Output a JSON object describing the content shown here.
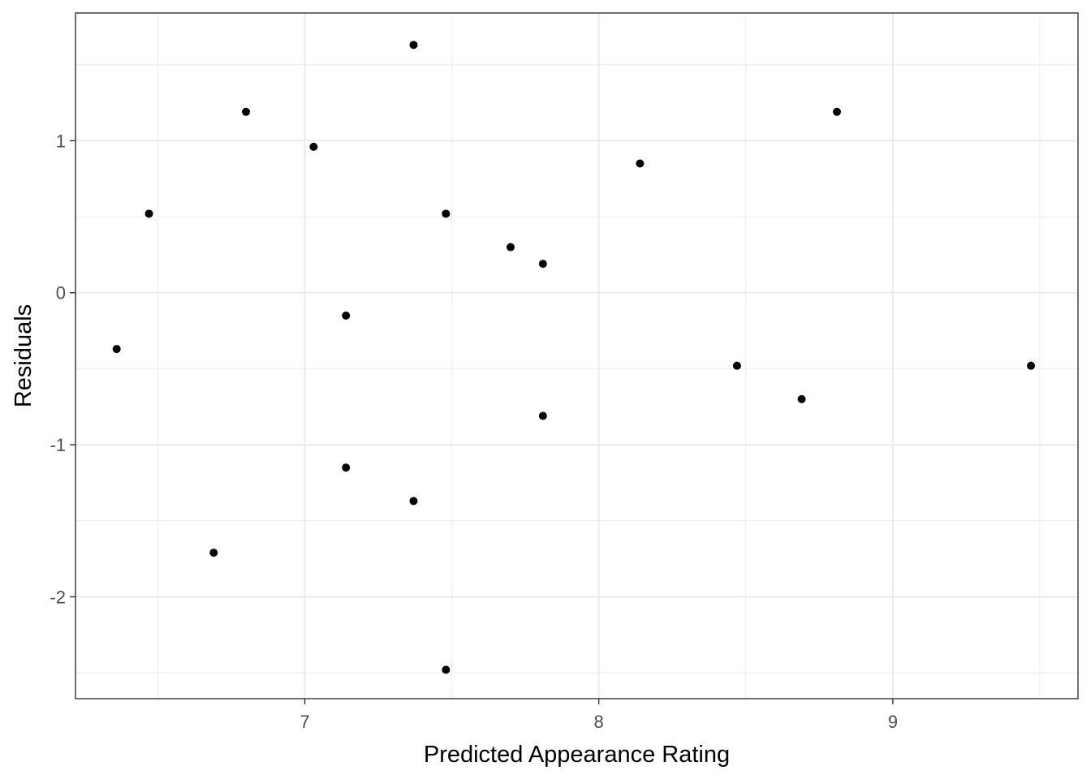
{
  "chart_data": {
    "type": "scatter",
    "title": "",
    "xlabel": "Predicted Appearance Rating",
    "ylabel": "Residuals",
    "xlim": [
      6.22,
      9.63
    ],
    "ylim": [
      -2.67,
      1.84
    ],
    "x_ticks": [
      7,
      8,
      9
    ],
    "y_ticks": [
      -2,
      -1,
      0,
      1
    ],
    "x_minor_ticks": [
      6.5,
      7.5,
      8.5,
      9.5
    ],
    "y_minor_ticks": [
      -2.5,
      -1.5,
      -0.5,
      0.5,
      1.5
    ],
    "grid": true,
    "legend": "none",
    "point_color": "#000000",
    "grid_color": "#ebebeb",
    "panel_border_color": "#333333",
    "points": [
      {
        "x": 6.36,
        "y": -0.37
      },
      {
        "x": 6.47,
        "y": 0.52
      },
      {
        "x": 6.69,
        "y": -1.71
      },
      {
        "x": 6.8,
        "y": 1.19
      },
      {
        "x": 7.03,
        "y": 0.96
      },
      {
        "x": 7.14,
        "y": -0.15
      },
      {
        "x": 7.14,
        "y": -1.15
      },
      {
        "x": 7.37,
        "y": 1.63
      },
      {
        "x": 7.37,
        "y": -1.37
      },
      {
        "x": 7.48,
        "y": 0.52
      },
      {
        "x": 7.48,
        "y": -2.48
      },
      {
        "x": 7.7,
        "y": 0.3
      },
      {
        "x": 7.81,
        "y": 0.19
      },
      {
        "x": 7.81,
        "y": -0.81
      },
      {
        "x": 8.14,
        "y": 0.85
      },
      {
        "x": 8.47,
        "y": -0.48
      },
      {
        "x": 8.69,
        "y": -0.7
      },
      {
        "x": 8.81,
        "y": 1.19
      },
      {
        "x": 9.47,
        "y": -0.48
      }
    ]
  }
}
